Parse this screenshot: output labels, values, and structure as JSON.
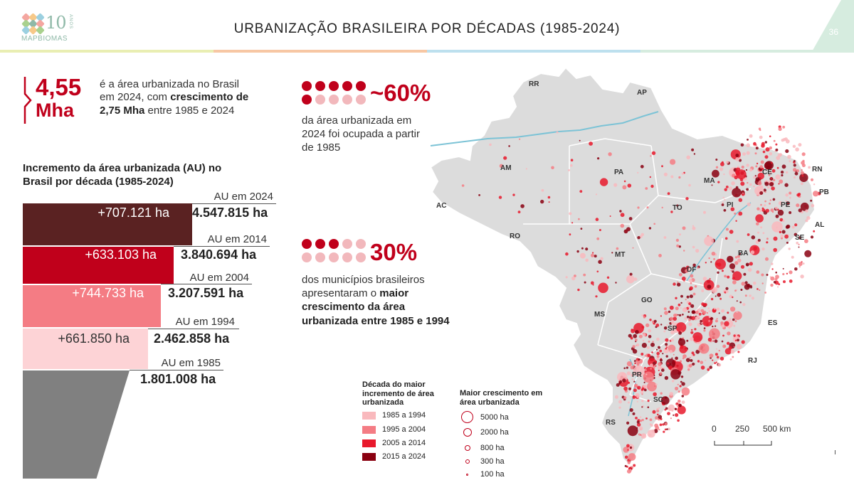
{
  "header": {
    "logo_number": "10",
    "logo_anos": "ANOS",
    "logo_text": "MAPBIOMAS",
    "title": "URBANIZAÇÃO BRASILEIRA POR DÉCADAS (1985-2024)",
    "page_number": "36",
    "bar_colors": [
      "#e9eeb3",
      "#f7c7a4",
      "#bde0ee",
      "#d6ecdf"
    ]
  },
  "headline": {
    "value": "4,55",
    "unit": "Mha",
    "text_1": "é a área urbanizada no Brasil em 2024, com",
    "text_bold": "crescimento de 2,75 Mha",
    "text_2": "entre 1985 e 2024"
  },
  "funnel": {
    "title": "Incremento da área urbanizada (AU) no Brasil por década (1985-2024)",
    "bands": [
      {
        "label": "AU em 2024",
        "value": "4.547.815 ha",
        "increment": "+707.121 ha",
        "color": "#5a2222"
      },
      {
        "label": "AU em 2014",
        "value": "3.840.694 ha",
        "increment": "+633.103 ha",
        "color": "#c0001b"
      },
      {
        "label": "AU em 2004",
        "value": "3.207.591 ha",
        "increment": "+744.733 ha",
        "color": "#f47c84"
      },
      {
        "label": "AU em 1994",
        "value": "2.462.858 ha",
        "increment": "+661.850 ha",
        "color": "#fdd3d6"
      },
      {
        "label": "AU em 1985",
        "value": "1.801.008 ha",
        "increment": "",
        "color": "#808080"
      }
    ]
  },
  "stat_60": {
    "value": "~60%",
    "text": "da área urbanizada em 2024 foi ocupada a partir de 1985",
    "dots_filled": 6,
    "dots_total": 10
  },
  "stat_30": {
    "value": "30%",
    "text_1": "dos municípios brasileiros apresentaram o",
    "text_bold": "maior crescimento da área urbanizada entre 1985 e 1994",
    "dots_filled": 3,
    "dots_total": 10
  },
  "map": {
    "states": [
      "RR",
      "AP",
      "AM",
      "PA",
      "MA",
      "CE",
      "RN",
      "PB",
      "PI",
      "PE",
      "AL",
      "SE",
      "AC",
      "RO",
      "TO",
      "BA",
      "MT",
      "DF",
      "GO",
      "MS",
      "ES",
      "SP",
      "RJ",
      "PR",
      "SC",
      "RS"
    ],
    "land_color": "#dcdcdc",
    "water_color": "#7cc3d6"
  },
  "legend_decade": {
    "title": "Década do maior incremento de área urbanizada",
    "items": [
      {
        "label": "1985 a 1994",
        "color": "#f9b9bd"
      },
      {
        "label": "1995 a 2004",
        "color": "#f47c84"
      },
      {
        "label": "2005 a 2014",
        "color": "#e8192c"
      },
      {
        "label": "2015 a 2024",
        "color": "#8a0010"
      }
    ]
  },
  "legend_size": {
    "title": "Maior crescimento em área urbanizada",
    "items": [
      {
        "label": "5000 ha"
      },
      {
        "label": "2000 ha"
      },
      {
        "label": "800 ha"
      },
      {
        "label": "300 ha"
      },
      {
        "label": "100 ha"
      }
    ]
  },
  "scale_bar": {
    "labels": [
      "0",
      "250",
      "500 km"
    ]
  }
}
